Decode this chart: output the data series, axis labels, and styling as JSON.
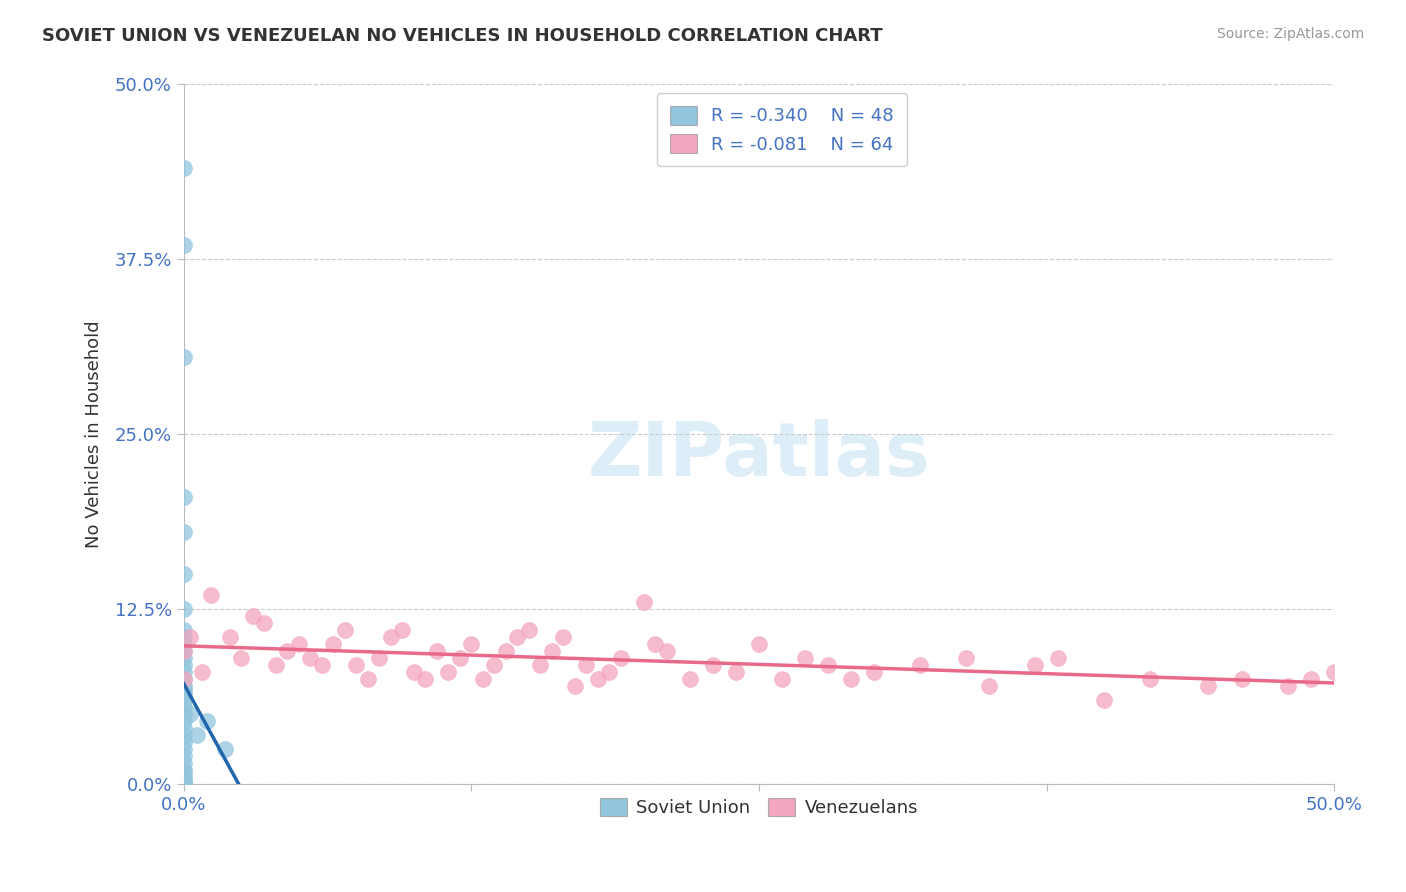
{
  "title": "SOVIET UNION VS VENEZUELAN NO VEHICLES IN HOUSEHOLD CORRELATION CHART",
  "source": "Source: ZipAtlas.com",
  "ylabel": "No Vehicles in Household",
  "ytick_values": [
    0.0,
    12.5,
    25.0,
    37.5,
    50.0
  ],
  "xlim": [
    0.0,
    50.0
  ],
  "ylim": [
    0.0,
    50.0
  ],
  "legend_label1": "Soviet Union",
  "legend_label2": "Venezuelans",
  "R1": -0.34,
  "N1": 48,
  "R2": -0.081,
  "N2": 64,
  "color_blue": "#92c5de",
  "color_pink": "#f4a6be",
  "color_blue_line": "#2166ac",
  "color_pink_line": "#e8698a",
  "background_color": "#ffffff",
  "grid_color": "#cccccc",
  "tick_color": "#4472c4",
  "axis_color": "#bbbbbb",
  "soviet_x": [
    0.0,
    0.0,
    0.0,
    0.0,
    0.0,
    0.0,
    0.0,
    0.0,
    0.0,
    0.0,
    0.0,
    0.0,
    0.0,
    0.0,
    0.0,
    0.0,
    0.0,
    0.0,
    0.0,
    0.0,
    0.0,
    0.0,
    0.0,
    0.0,
    0.0,
    0.0,
    0.0,
    0.0,
    0.0,
    0.0,
    0.0,
    0.0,
    0.0,
    0.0,
    0.0,
    0.0,
    0.0,
    0.0,
    0.0,
    0.0,
    0.0,
    0.0,
    0.0,
    0.0,
    0.3,
    0.6,
    1.0,
    1.8
  ],
  "soviet_y": [
    44.0,
    38.5,
    30.5,
    20.5,
    18.0,
    15.0,
    12.5,
    11.0,
    10.5,
    10.0,
    9.5,
    9.0,
    8.5,
    8.0,
    7.5,
    7.0,
    6.8,
    6.5,
    6.3,
    6.0,
    5.5,
    5.0,
    4.5,
    4.0,
    3.5,
    3.0,
    2.5,
    2.0,
    1.5,
    1.0,
    0.8,
    0.5,
    0.3,
    0.0,
    0.0,
    0.0,
    0.0,
    0.0,
    0.0,
    0.0,
    0.0,
    0.0,
    0.0,
    0.0,
    5.0,
    3.5,
    4.5,
    2.5
  ],
  "venezuela_x": [
    0.0,
    0.0,
    0.3,
    0.8,
    1.2,
    2.0,
    2.5,
    3.0,
    3.5,
    4.0,
    4.5,
    5.0,
    5.5,
    6.0,
    6.5,
    7.0,
    7.5,
    8.0,
    8.5,
    9.0,
    9.5,
    10.0,
    10.5,
    11.0,
    11.5,
    12.0,
    12.5,
    13.0,
    13.5,
    14.0,
    14.5,
    15.0,
    15.5,
    16.0,
    16.5,
    17.0,
    17.5,
    18.0,
    18.5,
    19.0,
    20.0,
    20.5,
    21.0,
    22.0,
    23.0,
    24.0,
    25.0,
    26.0,
    27.0,
    28.0,
    29.0,
    30.0,
    32.0,
    34.0,
    35.0,
    37.0,
    38.0,
    40.0,
    42.0,
    44.5,
    46.0,
    48.0,
    49.0,
    50.0
  ],
  "venezuela_y": [
    9.5,
    7.5,
    10.5,
    8.0,
    13.5,
    10.5,
    9.0,
    12.0,
    11.5,
    8.5,
    9.5,
    10.0,
    9.0,
    8.5,
    10.0,
    11.0,
    8.5,
    7.5,
    9.0,
    10.5,
    11.0,
    8.0,
    7.5,
    9.5,
    8.0,
    9.0,
    10.0,
    7.5,
    8.5,
    9.5,
    10.5,
    11.0,
    8.5,
    9.5,
    10.5,
    7.0,
    8.5,
    7.5,
    8.0,
    9.0,
    13.0,
    10.0,
    9.5,
    7.5,
    8.5,
    8.0,
    10.0,
    7.5,
    9.0,
    8.5,
    7.5,
    8.0,
    8.5,
    9.0,
    7.0,
    8.5,
    9.0,
    6.0,
    7.5,
    7.0,
    7.5,
    7.0,
    7.5,
    8.0
  ]
}
